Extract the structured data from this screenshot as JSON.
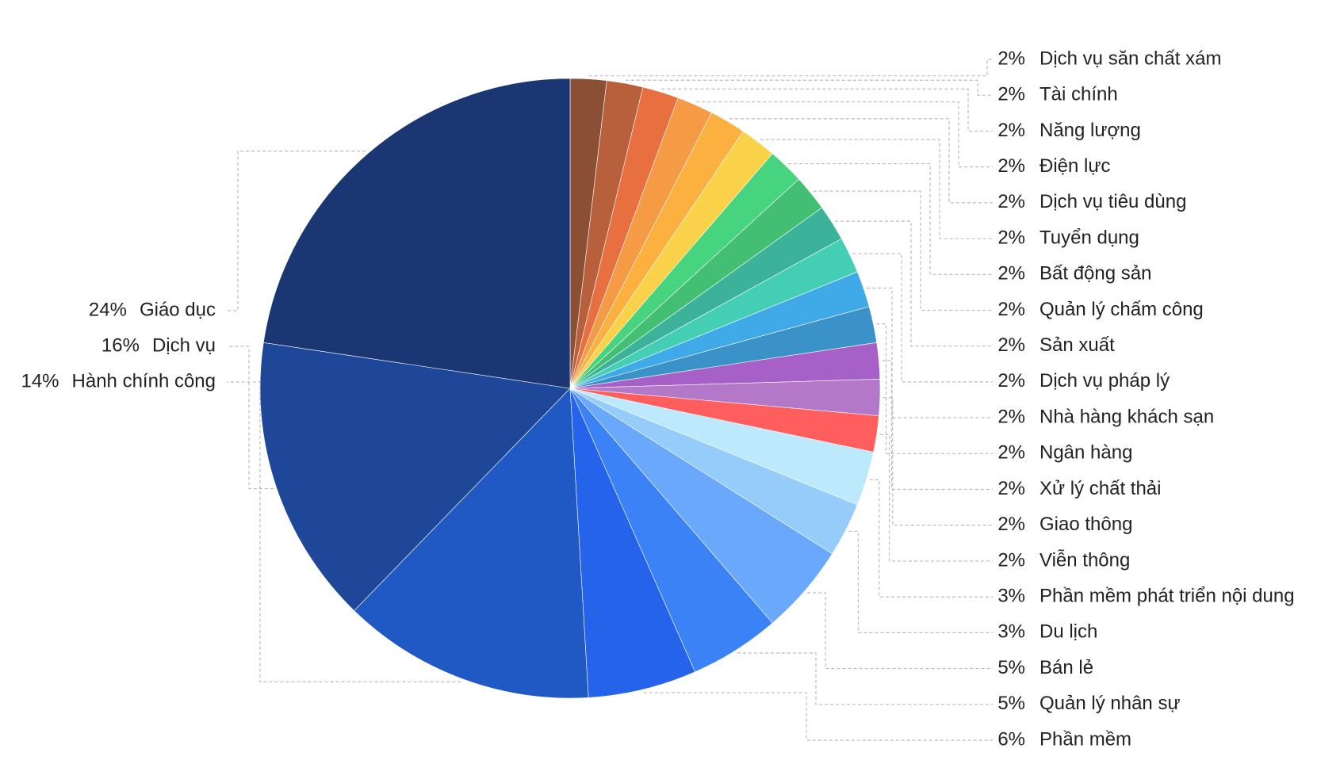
{
  "chart_data": {
    "type": "pie",
    "categories": [
      "Dịch vụ săn chất xám",
      "Tài chính",
      "Năng lượng",
      "Điện lực",
      "Dịch vụ tiêu dùng",
      "Tuyển dụng",
      "Bất động sản",
      "Quản lý chấm công",
      "Sản xuất",
      "Dịch vụ pháp lý",
      "Nhà hàng khách sạn",
      "Ngân hàng",
      "Xử lý chất thải",
      "Giao thông",
      "Viễn thông",
      "Phần mềm phát triển nội dung",
      "Du lịch",
      "Bán lẻ",
      "Quản lý nhân sự",
      "Phần mềm",
      "Hành chính công",
      "Dịch vụ",
      "Giáo dục"
    ],
    "values": [
      2,
      2,
      2,
      2,
      2,
      2,
      2,
      2,
      2,
      2,
      2,
      2,
      2,
      2,
      2,
      3,
      3,
      5,
      5,
      6,
      14,
      16,
      24
    ],
    "value_labels": [
      "2%",
      "2%",
      "2%",
      "2%",
      "2%",
      "2%",
      "2%",
      "2%",
      "2%",
      "2%",
      "2%",
      "2%",
      "2%",
      "2%",
      "2%",
      "3%",
      "3%",
      "5%",
      "5%",
      "6%",
      "14%",
      "16%",
      "24%"
    ],
    "colors": [
      "#8b4f35",
      "#b8603c",
      "#e87040",
      "#f59a45",
      "#fbb040",
      "#f9d24a",
      "#47d47e",
      "#42bf72",
      "#3db29a",
      "#44cfb4",
      "#40aae8",
      "#3b92c8",
      "#a660c8",
      "#b478c8",
      "#ff5e5e",
      "#bde9fc",
      "#96ccfa",
      "#69a8fa",
      "#3b82f6",
      "#2563eb",
      "#2159c4",
      "#1e4699",
      "#1a3673"
    ]
  }
}
